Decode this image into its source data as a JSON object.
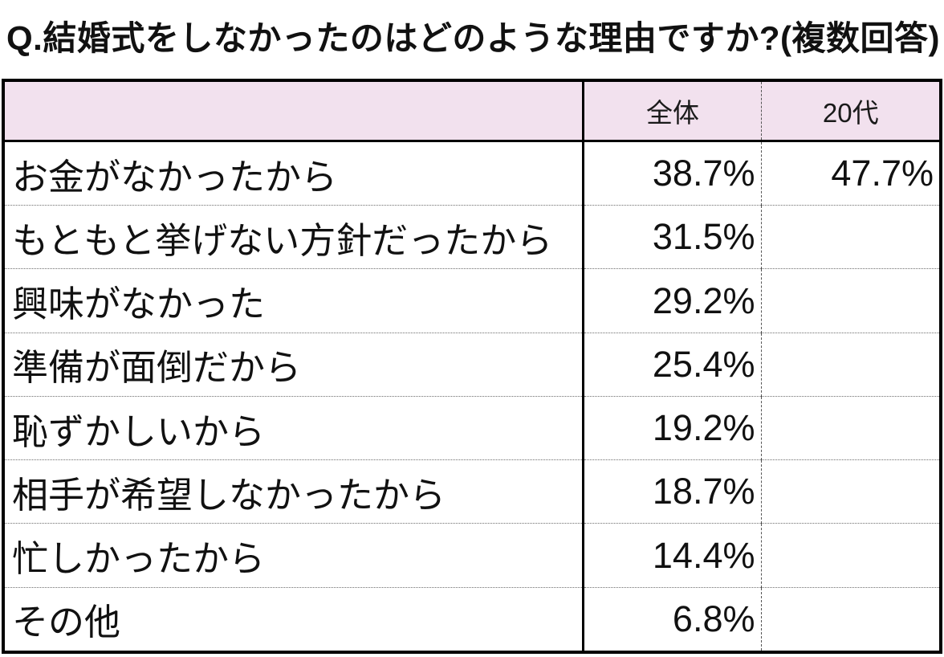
{
  "title": "Q.結婚式をしなかったのはどのような理由ですか?(複数回答)",
  "colors": {
    "header_bg": "#F2E1EE",
    "border": "#000000",
    "row_divider": "#6E6E6E",
    "text": "#111111"
  },
  "table": {
    "columns": [
      "",
      "全体",
      "20代"
    ],
    "rows": [
      [
        "お金がなかったから",
        "38.7%",
        "47.7%"
      ],
      [
        "もともと挙げない方針だったから",
        "31.5%",
        ""
      ],
      [
        "興味がなかった",
        "29.2%",
        ""
      ],
      [
        "準備が面倒だから",
        "25.4%",
        ""
      ],
      [
        "恥ずかしいから",
        "19.2%",
        ""
      ],
      [
        "相手が希望しなかったから",
        "18.7%",
        ""
      ],
      [
        "忙しかったから",
        "14.4%",
        ""
      ],
      [
        "その他",
        "6.8%",
        ""
      ]
    ]
  },
  "chart_data": {
    "type": "table",
    "title": "Q.結婚式をしなかったのはどのような理由ですか?(複数回答)",
    "columns": [
      "",
      "全体",
      "20代"
    ],
    "categories": [
      "お金がなかったから",
      "もともと挙げない方針だったから",
      "興味がなかった",
      "準備が面倒だから",
      "恥ずかしいから",
      "相手が希望しなかったから",
      "忙しかったから",
      "その他"
    ],
    "series": [
      {
        "name": "全体",
        "values": [
          38.7,
          31.5,
          29.2,
          25.4,
          19.2,
          18.7,
          14.4,
          6.8
        ]
      },
      {
        "name": "20代",
        "values": [
          47.7,
          null,
          null,
          null,
          null,
          null,
          null,
          null
        ]
      }
    ],
    "value_unit": "%",
    "notes": "複数回答 (multiple answers allowed); 20代 column only filled for the top reason"
  }
}
